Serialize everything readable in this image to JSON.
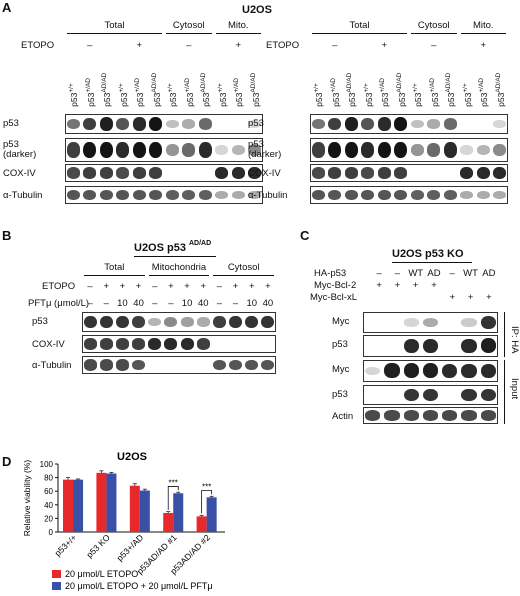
{
  "panels": {
    "A": {
      "letter": "A",
      "title": "U2OS",
      "groups": [
        "Total",
        "Cytosol",
        "Mito."
      ],
      "etopo_label": "ETOPO",
      "etopo_signs": [
        "–",
        "+",
        "–",
        "+"
      ],
      "genotypes": [
        "p53+/+",
        "p53+/AD",
        "p53AD/AD",
        "p53+/+",
        "p53+/AD",
        "p53AD/AD",
        "p53+/+",
        "p53+/AD",
        "p53AD/AD",
        "p53+/+",
        "p53+/AD",
        "p53AD/AD"
      ],
      "rows": [
        "p53",
        "p53\n(darker)",
        "COX-IV",
        "α-Tubulin"
      ]
    },
    "B": {
      "letter": "B",
      "title": "U2OS p53AD/AD",
      "groups": [
        "Total",
        "Mitochondria",
        "Cytosol"
      ],
      "etopo_label": "ETOPO",
      "etopo_signs": [
        "–",
        "+",
        "+",
        "+",
        "–",
        "+",
        "+",
        "+",
        "–",
        "+",
        "+",
        "+"
      ],
      "pft_label": "PFTμ (μmol/L)",
      "pft_values": [
        "–",
        "–",
        "10",
        "40",
        "–",
        "–",
        "10",
        "40",
        "–",
        "–",
        "10",
        "40"
      ],
      "rows": [
        "p53",
        "COX-IV",
        "α-Tubulin"
      ]
    },
    "C": {
      "letter": "C",
      "title": "U2OS p53 KO",
      "conditions": [
        {
          "label": "HA-p53",
          "values": [
            "–",
            "–",
            "WT",
            "AD",
            "–",
            "WT",
            "AD"
          ]
        },
        {
          "label": "Myc-Bcl-2",
          "values": [
            "+",
            "+",
            "+",
            "+",
            "",
            "",
            ""
          ]
        },
        {
          "label": "Myc-Bcl-xL",
          "values": [
            "",
            "",
            "",
            "",
            "+",
            "+",
            "+"
          ]
        }
      ],
      "rows": [
        "Myc",
        "p53",
        "Myc",
        "p53",
        "Actin"
      ],
      "side_labels": [
        "IP: HA",
        "Input"
      ]
    },
    "D": {
      "letter": "D",
      "title": "U2OS"
    }
  },
  "chart_data": {
    "type": "bar",
    "title": "U2OS",
    "ylabel": "Relative viability (%)",
    "ylim": [
      0,
      100
    ],
    "yticks": [
      0,
      20,
      40,
      60,
      80,
      100
    ],
    "categories": [
      "p53+/+",
      "p53 KO",
      "p53+/AD",
      "p53AD/AD #1",
      "p53AD/AD #2"
    ],
    "series": [
      {
        "name": "20 μmol/L ETOPO",
        "color": "#e8292a",
        "values": [
          77,
          87,
          68,
          28,
          23
        ],
        "errors": [
          3,
          3,
          3,
          2,
          1.5
        ]
      },
      {
        "name": "20 μmol/L ETOPO + 20 μmol/L PFTμ",
        "color": "#3a4fa6",
        "values": [
          77,
          86,
          61,
          57,
          51
        ],
        "errors": [
          1,
          1.5,
          2,
          1.5,
          1.5
        ]
      }
    ],
    "significance": [
      "***",
      "***"
    ],
    "legend_position": "bottom-left"
  }
}
